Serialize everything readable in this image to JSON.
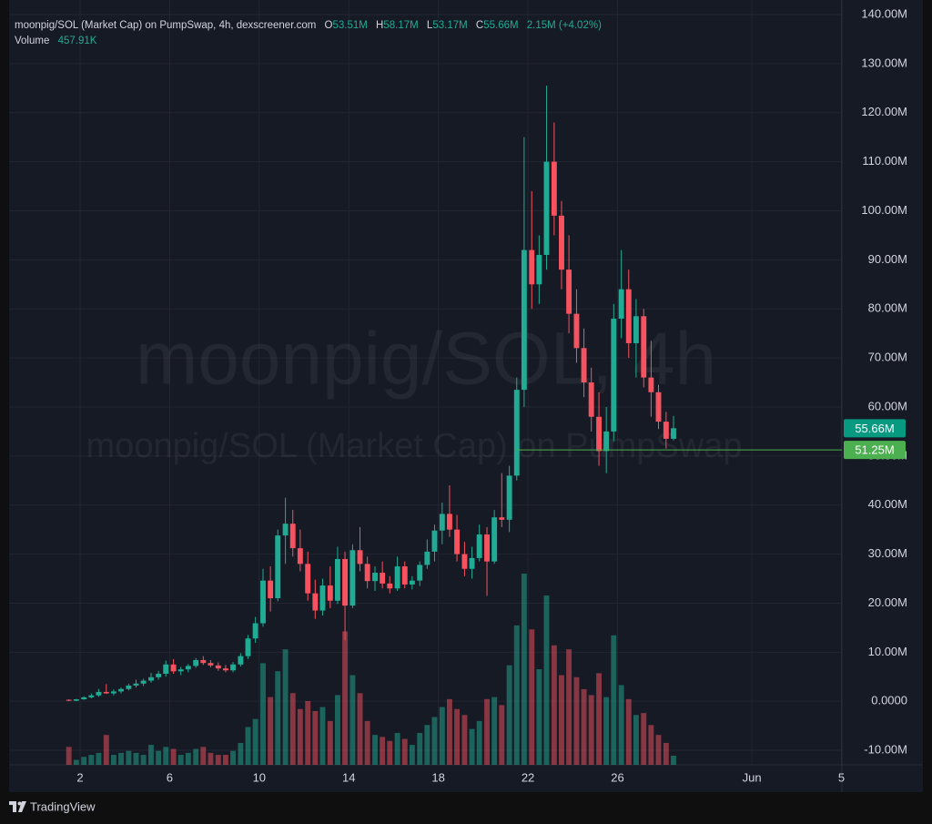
{
  "chart_data": {
    "type": "candlestick",
    "symbol": "moonpig/SOL (Market Cap) on PumpSwap, 4h, dexscreener.com",
    "ohlc": {
      "o_key": "O",
      "o": "53.51M",
      "h_key": "H",
      "h": "58.17M",
      "l_key": "L",
      "l": "53.17M",
      "c_key": "C",
      "c": "55.66M",
      "change": "2.15M (+4.02%)"
    },
    "volume_key": "Volume",
    "volume_value": "457.91K",
    "watermark": [
      "moonpig/SOL, 4h",
      "moonpig/SOL (Market Cap) on PumpSwap"
    ],
    "footer": "TradingView",
    "up_color": "#22ab94",
    "down_color": "#f7525f",
    "x": [
      1.5,
      1.83,
      2.17,
      2.5,
      2.83,
      3.17,
      3.5,
      3.83,
      4.17,
      4.5,
      4.83,
      5.17,
      5.5,
      5.83,
      6.17,
      6.5,
      6.83,
      7.17,
      7.5,
      7.83,
      8.17,
      8.5,
      8.83,
      9.17,
      9.5,
      9.83,
      10.17,
      10.5,
      10.83,
      11.17,
      11.5,
      11.83,
      12.17,
      12.5,
      12.83,
      13.17,
      13.5,
      13.83,
      14.17,
      14.5,
      14.83,
      15.17,
      15.5,
      15.83,
      16.17,
      16.5,
      16.83,
      17.17,
      17.5,
      17.83,
      18.17,
      18.5,
      18.83,
      19.17,
      19.5,
      19.83,
      20.17,
      20.5,
      20.83,
      21.17,
      21.5,
      21.83,
      22.17,
      22.5,
      22.83,
      23.17,
      23.5,
      23.83,
      24.17,
      24.5,
      24.83,
      25.17,
      25.5,
      25.83,
      26.17,
      26.5,
      26.83,
      27.17,
      27.5,
      27.83,
      28.17,
      28.5
    ],
    "open": [
      0.3,
      0.1,
      0.4,
      0.8,
      1.2,
      1.9,
      1.6,
      2.0,
      2.5,
      3.2,
      3.6,
      4.2,
      4.9,
      5.6,
      7.5,
      6.1,
      6.5,
      7.2,
      8.4,
      7.8,
      7.3,
      6.7,
      6.3,
      7.5,
      9.2,
      12.8,
      15.9,
      24.6,
      21.0,
      33.8,
      36.2,
      31.2,
      28.0,
      22.0,
      18.5,
      23.6,
      20.5,
      29.0,
      19.5,
      30.8,
      28.0,
      24.5,
      26.2,
      24.0,
      23.0,
      27.5,
      23.8,
      24.6,
      27.8,
      30.5,
      34.8,
      38.2,
      35.0,
      30.0,
      27.0,
      29.2,
      34.0,
      28.5,
      37.5,
      37.0,
      46.0,
      63.5,
      92.0,
      85.0,
      91.0,
      110.0,
      99.0,
      88.0,
      79.0,
      72.0,
      65.0,
      58.0,
      51.0,
      55.0,
      78.0,
      84.0,
      73.0,
      78.5,
      66.0,
      63.0,
      57.0,
      53.51
    ],
    "high": [
      0.4,
      0.5,
      1.0,
      1.6,
      2.5,
      3.5,
      2.4,
      2.8,
      3.6,
      4.4,
      4.6,
      5.8,
      6.2,
      8.3,
      8.6,
      7.0,
      7.6,
      8.8,
      9.2,
      8.4,
      7.9,
      7.4,
      8.0,
      9.8,
      13.5,
      17.2,
      27.0,
      27.5,
      35.0,
      41.5,
      39.0,
      35.0,
      30.5,
      24.8,
      25.0,
      27.5,
      31.5,
      30.5,
      32.0,
      35.5,
      29.5,
      27.5,
      28.5,
      25.5,
      29.5,
      28.5,
      25.5,
      28.5,
      33.0,
      36.0,
      40.5,
      44.0,
      38.0,
      32.5,
      31.5,
      36.0,
      35.5,
      39.0,
      46.5,
      48.0,
      66.0,
      115.0,
      104.0,
      95.0,
      125.5,
      118.0,
      102.0,
      95.0,
      84.0,
      76.0,
      68.0,
      63.0,
      60.0,
      81.0,
      92.0,
      88.0,
      82.0,
      80.0,
      73.5,
      64.5,
      59.0,
      58.17
    ],
    "low": [
      0.0,
      0.0,
      0.3,
      0.6,
      0.9,
      1.5,
      1.2,
      1.6,
      2.2,
      2.8,
      3.1,
      3.8,
      4.4,
      5.0,
      5.6,
      5.3,
      5.9,
      6.8,
      7.4,
      6.9,
      6.2,
      5.9,
      5.9,
      7.1,
      8.6,
      11.9,
      15.2,
      18.3,
      20.4,
      28.0,
      29.5,
      26.5,
      20.5,
      16.8,
      17.5,
      19.0,
      19.8,
      12.5,
      19.0,
      26.5,
      23.0,
      22.5,
      23.0,
      22.0,
      22.5,
      23.0,
      22.8,
      23.5,
      27.0,
      28.5,
      32.0,
      33.5,
      28.5,
      25.5,
      25.0,
      28.5,
      21.5,
      28.0,
      35.5,
      34.5,
      45.0,
      60.0,
      80.0,
      81.0,
      88.0,
      95.0,
      84.0,
      75.0,
      69.0,
      62.0,
      55.0,
      48.0,
      46.5,
      53.0,
      74.0,
      70.0,
      66.0,
      64.0,
      58.0,
      55.5,
      51.5,
      53.17
    ],
    "close": [
      0.1,
      0.4,
      0.8,
      1.2,
      1.9,
      1.6,
      2.0,
      2.5,
      3.2,
      3.6,
      4.2,
      4.9,
      5.6,
      7.5,
      6.1,
      6.5,
      7.2,
      8.4,
      7.8,
      7.3,
      6.7,
      6.3,
      7.5,
      9.2,
      12.8,
      15.9,
      24.6,
      21.0,
      33.8,
      36.2,
      31.2,
      28.0,
      22.0,
      18.5,
      23.6,
      20.5,
      29.0,
      19.5,
      30.8,
      28.0,
      24.5,
      26.2,
      24.0,
      23.0,
      27.5,
      23.8,
      24.6,
      27.8,
      30.5,
      34.8,
      38.2,
      35.0,
      30.0,
      27.0,
      29.2,
      34.0,
      28.5,
      37.5,
      37.0,
      46.0,
      63.5,
      92.0,
      85.0,
      91.0,
      110.0,
      99.0,
      88.0,
      79.0,
      72.0,
      65.0,
      58.0,
      51.0,
      55.0,
      78.0,
      84.0,
      73.0,
      78.5,
      66.0,
      63.0,
      57.0,
      53.51,
      55.66
    ],
    "volume": [
      900,
      250,
      400,
      500,
      600,
      1500,
      500,
      600,
      700,
      600,
      500,
      1000,
      700,
      900,
      800,
      500,
      600,
      800,
      900,
      600,
      500,
      500,
      700,
      1100,
      1900,
      2300,
      5100,
      3400,
      4700,
      5800,
      3600,
      2800,
      3200,
      2700,
      2900,
      2200,
      3500,
      6700,
      4500,
      3600,
      2200,
      1500,
      1400,
      1200,
      1600,
      1300,
      1000,
      1600,
      2000,
      2400,
      2900,
      3300,
      2800,
      2500,
      1800,
      2200,
      3300,
      3400,
      3000,
      5000,
      7000,
      9600,
      6800,
      4800,
      8500,
      6000,
      4500,
      5800,
      4400,
      3800,
      3500,
      4600,
      3400,
      6500,
      4000,
      3300,
      2500,
      2600,
      2000,
      1500,
      1100,
      457.91
    ],
    "xlim": [
      -1.17,
      36.02
    ],
    "xticks": [
      2,
      6,
      10,
      14,
      18,
      22,
      26,
      {
        "value": 32,
        "label": "Jun"
      },
      {
        "value": 36,
        "label": "5"
      }
    ],
    "ylim": [
      -12.96,
      142.97
    ],
    "yticks": [
      {
        "value": 140,
        "label": "140.00M"
      },
      {
        "value": 130,
        "label": "130.00M"
      },
      {
        "value": 120,
        "label": "120.00M"
      },
      {
        "value": 110,
        "label": "110.00M"
      },
      {
        "value": 100,
        "label": "100.00M"
      },
      {
        "value": 90,
        "label": "90.00M"
      },
      {
        "value": 80,
        "label": "80.00M"
      },
      {
        "value": 70,
        "label": "70.00M"
      },
      {
        "value": 60,
        "label": "60.00M"
      },
      {
        "value": 50,
        "label": "50.00M"
      },
      {
        "value": 40,
        "label": "40.00M"
      },
      {
        "value": 30,
        "label": "30.00M"
      },
      {
        "value": 20,
        "label": "20.00M"
      },
      {
        "value": 10,
        "label": "10.00M"
      },
      {
        "value": 0,
        "label": "0.0000"
      },
      {
        "value": -10,
        "label": "-10.00M"
      }
    ],
    "grid": true,
    "last_price": {
      "value": 55.66,
      "label": "55.66M",
      "color": "#089981"
    },
    "horizontal_line": {
      "value": 51.25,
      "label": "51.25M",
      "color": "#4caf50",
      "start_x": 21.5
    }
  }
}
